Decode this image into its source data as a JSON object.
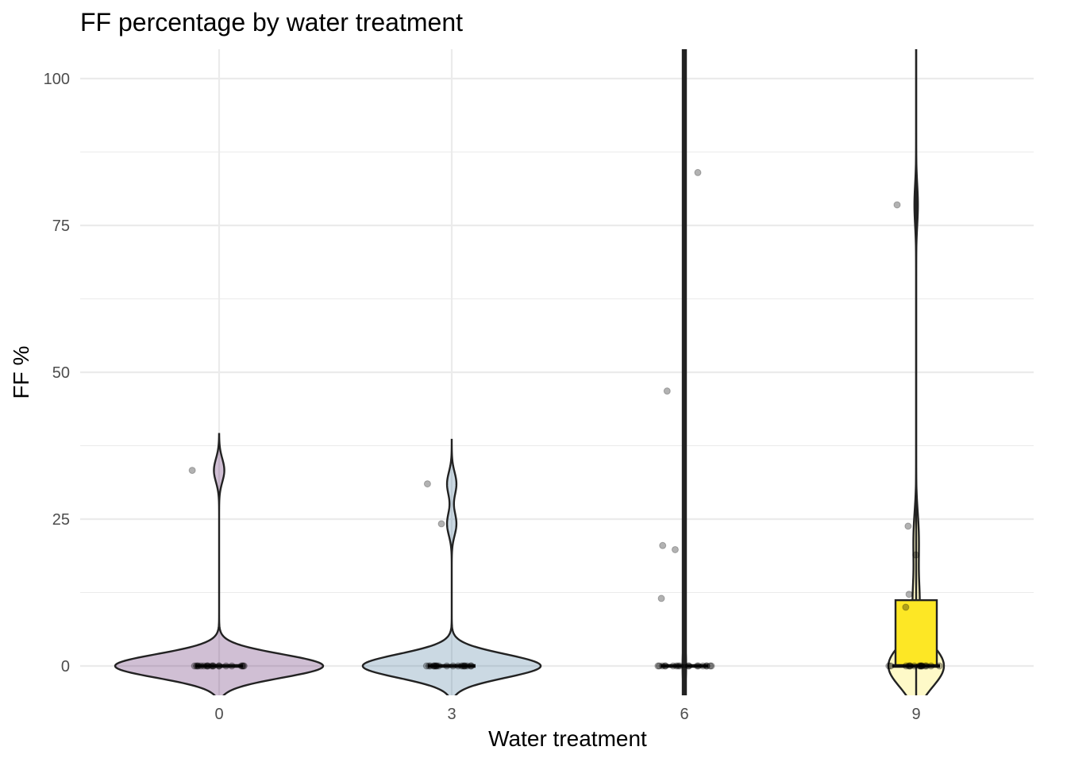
{
  "chart_data": {
    "type": "violin",
    "title": "FF percentage by water treatment",
    "xlabel": "Water treatment",
    "ylabel": "FF %",
    "categories": [
      "0",
      "3",
      "6",
      "9"
    ],
    "y_ticks": [
      0,
      25,
      50,
      75,
      100
    ],
    "ylim": [
      -5,
      105
    ],
    "grid": true,
    "legend": "none",
    "colors": {
      "0": "#440154",
      "3": "#31688e",
      "6": "#35b779",
      "9": "#fde725"
    },
    "groups": [
      {
        "category": "0",
        "fill": "#440154",
        "points": [
          0,
          0,
          0,
          0,
          0,
          0,
          0,
          0,
          0,
          0,
          0,
          0,
          0,
          0,
          0,
          0,
          0,
          0,
          0,
          0,
          33.3
        ],
        "box": {
          "q1": 0,
          "median": 0,
          "q3": 0,
          "whisker_low": 0,
          "whisker_high": 0
        }
      },
      {
        "category": "3",
        "fill": "#31688e",
        "points": [
          0,
          0,
          0,
          0,
          0,
          0,
          0,
          0,
          0,
          0,
          0,
          0,
          0,
          0,
          0,
          0,
          0,
          0,
          0,
          24.2,
          31.0
        ],
        "box": {
          "q1": 0,
          "median": 0,
          "q3": 0,
          "whisker_low": 0,
          "whisker_high": 0
        }
      },
      {
        "category": "6",
        "fill": "#35b779",
        "points": [
          0,
          0,
          0,
          0,
          0,
          0,
          0,
          0,
          0,
          0,
          0,
          0,
          0,
          0,
          0,
          0,
          0,
          0,
          11.5,
          19.8,
          20.5,
          46.8,
          84.0
        ],
        "box": {
          "q1": 0,
          "median": 0,
          "q3": 0,
          "whisker_low": -5,
          "whisker_high": 105
        }
      },
      {
        "category": "9",
        "fill": "#fde725",
        "points": [
          0,
          0,
          0,
          0,
          0,
          0,
          0,
          0,
          0,
          0,
          0,
          0,
          0,
          0,
          0,
          0,
          10.0,
          12.2,
          18.9,
          23.8,
          78.5
        ],
        "box": {
          "q1": 0,
          "median": 0,
          "q3": 11.2,
          "whisker_low": -5,
          "whisker_high": 105
        }
      }
    ]
  }
}
